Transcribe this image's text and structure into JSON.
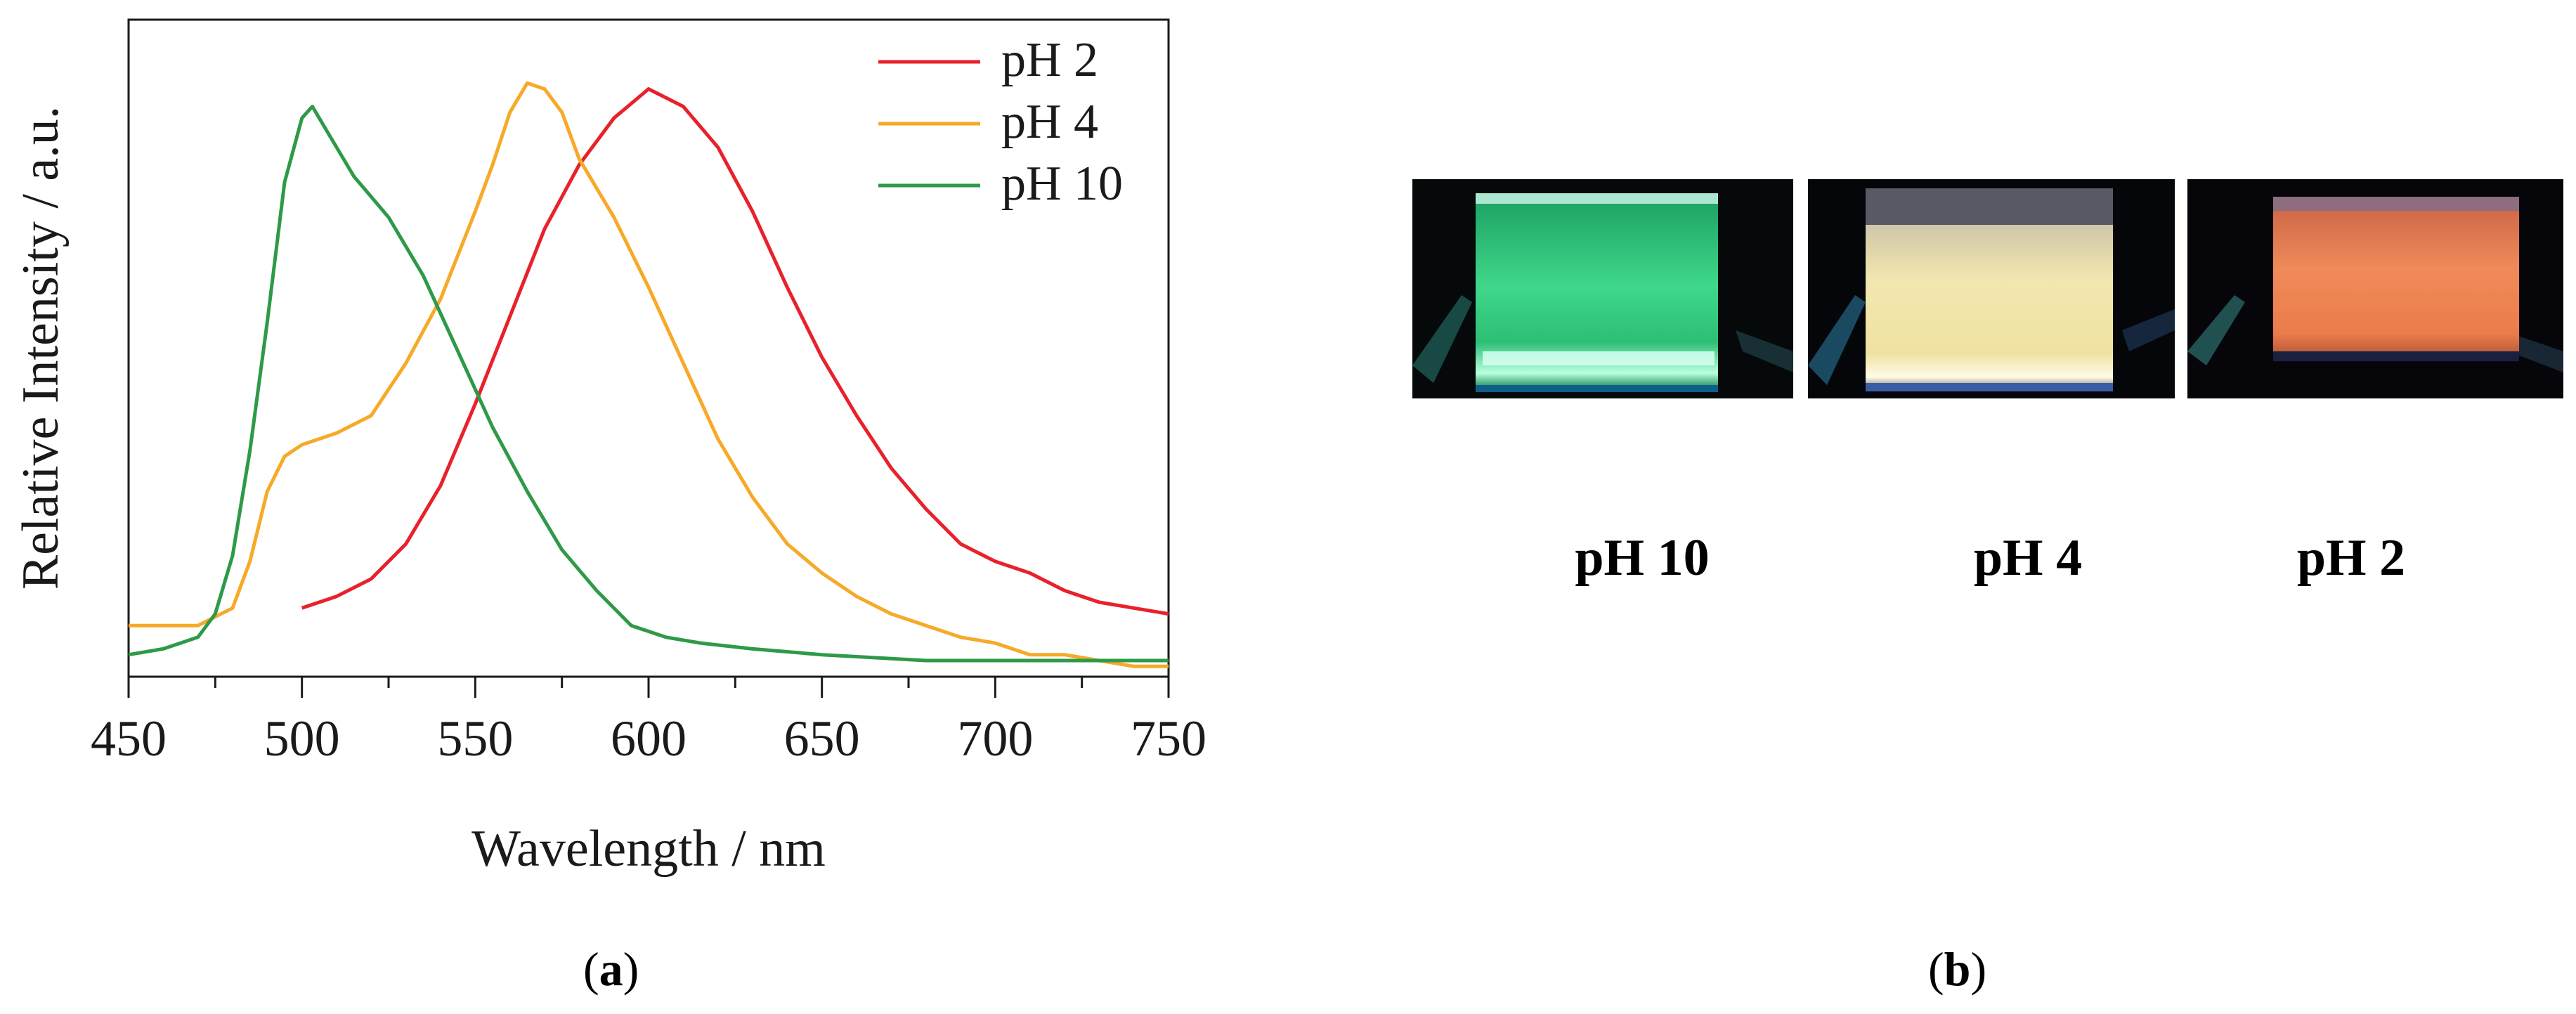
{
  "chart_data": {
    "type": "line",
    "title": "",
    "xlabel": "Wavelength / nm",
    "ylabel": "Relative Intensity / a.u.",
    "xlim": [
      450,
      750
    ],
    "ylim": [
      0,
      1.0
    ],
    "xticks": [
      450,
      500,
      550,
      600,
      650,
      700,
      750
    ],
    "y_ticks_labeled": false,
    "grid": false,
    "legend_position": "top-right",
    "series": [
      {
        "name": "pH 2",
        "color": "#e8212b",
        "x": [
          500,
          510,
          520,
          530,
          540,
          550,
          560,
          570,
          580,
          590,
          600,
          610,
          620,
          630,
          640,
          650,
          660,
          670,
          680,
          690,
          700,
          710,
          720,
          730,
          740,
          750
        ],
        "y": [
          0.09,
          0.11,
          0.14,
          0.2,
          0.3,
          0.44,
          0.59,
          0.74,
          0.85,
          0.93,
          0.98,
          0.95,
          0.88,
          0.77,
          0.64,
          0.52,
          0.42,
          0.33,
          0.26,
          0.2,
          0.17,
          0.15,
          0.12,
          0.1,
          0.09,
          0.08
        ]
      },
      {
        "name": "pH 4",
        "color": "#f7a928",
        "x": [
          450,
          460,
          470,
          480,
          485,
          490,
          495,
          500,
          505,
          510,
          520,
          530,
          540,
          550,
          555,
          560,
          565,
          570,
          575,
          580,
          590,
          600,
          610,
          620,
          630,
          640,
          650,
          660,
          670,
          680,
          690,
          700,
          710,
          720,
          730,
          740,
          750
        ],
        "y": [
          0.06,
          0.06,
          0.06,
          0.09,
          0.17,
          0.29,
          0.35,
          0.37,
          0.38,
          0.39,
          0.42,
          0.51,
          0.62,
          0.77,
          0.85,
          0.94,
          0.99,
          0.98,
          0.94,
          0.86,
          0.76,
          0.64,
          0.51,
          0.38,
          0.28,
          0.2,
          0.15,
          0.11,
          0.08,
          0.06,
          0.04,
          0.03,
          0.01,
          0.01,
          0.0,
          -0.01,
          -0.01
        ]
      },
      {
        "name": "pH 10",
        "color": "#2e9a48",
        "x": [
          450,
          460,
          470,
          475,
          480,
          485,
          490,
          495,
          500,
          503,
          508,
          515,
          525,
          535,
          545,
          555,
          565,
          575,
          585,
          595,
          605,
          615,
          630,
          650,
          680,
          700,
          750
        ],
        "y": [
          0.01,
          0.02,
          0.04,
          0.08,
          0.18,
          0.36,
          0.58,
          0.82,
          0.93,
          0.95,
          0.9,
          0.83,
          0.76,
          0.66,
          0.53,
          0.4,
          0.29,
          0.19,
          0.12,
          0.06,
          0.04,
          0.03,
          0.02,
          0.01,
          0.0,
          0.0,
          0.0
        ]
      }
    ]
  },
  "labels": {
    "panel_a": "a",
    "panel_b": "b"
  },
  "photos": [
    {
      "caption": "pH 10",
      "glow": "#3fd88a"
    },
    {
      "caption": "pH 4",
      "glow": "#f2e7b0"
    },
    {
      "caption": "pH 2",
      "glow": "#f08a5a"
    }
  ]
}
